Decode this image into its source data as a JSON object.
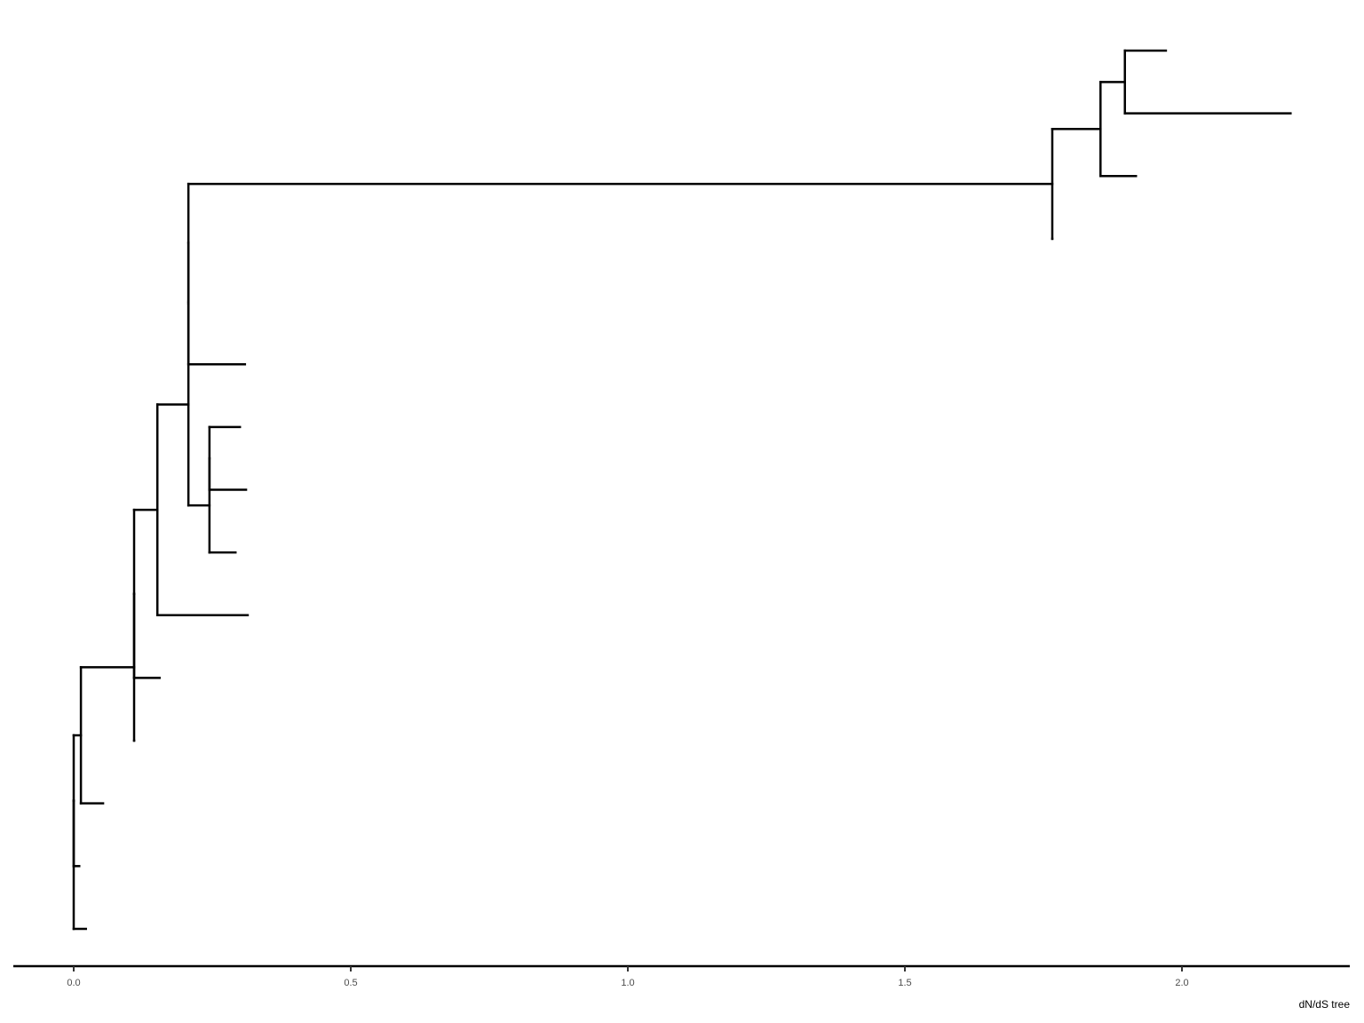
{
  "chart_data": {
    "type": "tree",
    "xlabel": "dN/dS tree",
    "xlim": [
      -0.11,
      2.3
    ],
    "xticks": [
      0.0,
      0.5,
      1.0,
      1.5,
      2.0
    ],
    "xtick_labels": [
      "0.0",
      "0.5",
      "1.0",
      "1.5",
      "2.0"
    ],
    "grid": false,
    "line_color": "#000000",
    "tree": {
      "x": 0.0,
      "children": [
        {
          "x": 0.0,
          "children": [
            {
              "x": 0.013,
              "children": [
                {
                  "x": 0.109,
                  "children": [
                    {
                      "x": 0.109,
                      "children": [
                        {
                          "x": 0.151,
                          "children": [
                            {
                              "x": 0.207,
                              "children": [
                                {
                                  "x": 0.207,
                                  "children": [
                                    {
                                      "x": 0.207,
                                      "children": [
                                        {
                                          "x": 1.766,
                                          "children": [
                                            {
                                              "x": 1.853,
                                              "children": [
                                                {
                                                  "x": 1.897,
                                                  "children": [
                                                    {
                                                      "x": 1.971
                                                    },
                                                    {
                                                      "x": 2.196
                                                    }
                                                  ]
                                                },
                                                {
                                                  "x": 1.917
                                                }
                                              ]
                                            },
                                            {
                                              "x": 1.766
                                            }
                                          ]
                                        },
                                        {
                                          "x": 0.207
                                        }
                                      ]
                                    },
                                    {
                                      "x": 0.309
                                    }
                                  ]
                                },
                                {
                                  "x": 0.245,
                                  "children": [
                                    {
                                      "x": 0.245,
                                      "children": [
                                        {
                                          "x": 0.3
                                        },
                                        {
                                          "x": 0.311
                                        }
                                      ]
                                    },
                                    {
                                      "x": 0.292
                                    }
                                  ]
                                }
                              ]
                            },
                            {
                              "x": 0.314
                            }
                          ]
                        },
                        {
                          "x": 0.155
                        }
                      ]
                    },
                    {
                      "x": 0.109
                    }
                  ]
                },
                {
                  "x": 0.053
                }
              ]
            },
            {
              "x": 0.01
            }
          ]
        },
        {
          "x": 0.022
        }
      ]
    }
  }
}
